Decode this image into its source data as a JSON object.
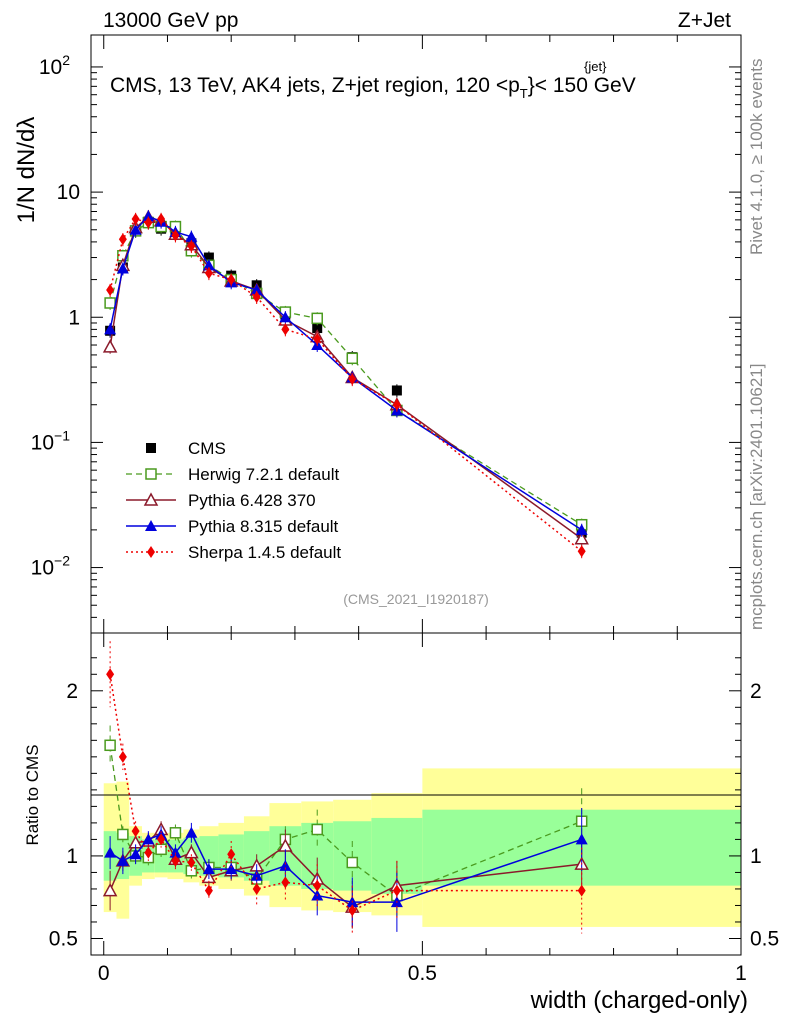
{
  "header": {
    "left": "13000 GeV pp",
    "right": "Z+Jet"
  },
  "side": {
    "rivet": "Rivet 4.1.0, ≥ 100k events",
    "mcplots": "mcplots.cern.ch [arXiv:2401.10621]"
  },
  "plot": {
    "title_main": "CMS, 13 TeV, AK4 jets, Z+jet region, 120 <p",
    "title_sup": "{jet}",
    "title_sub": "T",
    "title_end": "}< 150 GeV",
    "analysis_id": "(CMS_2021_I1920187)"
  },
  "axes": {
    "xlabel": "width (charged-only)",
    "ylabel_ratio": "Ratio to CMS",
    "ylabel_main": "1/N dN/dλ",
    "x_ticks": [
      "0",
      "0.5",
      "1"
    ],
    "y_ticks_main": [
      "10^-2",
      "10^-1",
      "1",
      "10",
      "10^2"
    ],
    "y_ticks_ratio": [
      "0.5",
      "1",
      "2"
    ]
  },
  "legend": [
    {
      "label": "CMS",
      "color": "#000000",
      "marker": "square-filled"
    },
    {
      "label": "Herwig 7.2.1 default",
      "color": "#4a9a1e",
      "marker": "square-open"
    },
    {
      "label": "Pythia 6.428 370",
      "color": "#8b1a2b",
      "marker": "triangle-open"
    },
    {
      "label": "Pythia 8.315 default",
      "color": "#0000dd",
      "marker": "triangle-filled"
    },
    {
      "label": "Sherpa 1.4.5 default",
      "color": "#ee0000",
      "marker": "diamond-filled"
    }
  ],
  "chart_data": {
    "type": "line",
    "xlim": [
      -0.02,
      1.0
    ],
    "ylim_main": [
      0.003,
      180
    ],
    "ylim_ratio": [
      0.4,
      2.35
    ],
    "bins": [
      [
        0.0,
        0.02
      ],
      [
        0.02,
        0.04
      ],
      [
        0.04,
        0.06
      ],
      [
        0.06,
        0.08
      ],
      [
        0.08,
        0.1
      ],
      [
        0.1,
        0.125
      ],
      [
        0.125,
        0.15
      ],
      [
        0.15,
        0.18
      ],
      [
        0.18,
        0.22
      ],
      [
        0.22,
        0.26
      ],
      [
        0.26,
        0.31
      ],
      [
        0.31,
        0.36
      ],
      [
        0.36,
        0.42
      ],
      [
        0.42,
        0.5
      ],
      [
        0.5,
        1.0
      ]
    ],
    "x": [
      0.01,
      0.03,
      0.05,
      0.07,
      0.09,
      0.1125,
      0.1375,
      0.165,
      0.2,
      0.24,
      0.285,
      0.335,
      0.39,
      0.46,
      0.75
    ],
    "ratio_band_green": [
      [
        0.85,
        1.15
      ],
      [
        0.86,
        1.14
      ],
      [
        0.88,
        1.12
      ],
      [
        0.9,
        1.1
      ],
      [
        0.9,
        1.1
      ],
      [
        0.9,
        1.1
      ],
      [
        0.89,
        1.11
      ],
      [
        0.88,
        1.12
      ],
      [
        0.87,
        1.13
      ],
      [
        0.85,
        1.15
      ],
      [
        0.82,
        1.18
      ],
      [
        0.8,
        1.2
      ],
      [
        0.79,
        1.21
      ],
      [
        0.77,
        1.23
      ],
      [
        0.82,
        1.28
      ]
    ],
    "ratio_band_yellow": [
      [
        0.66,
        1.44
      ],
      [
        0.62,
        1.45
      ],
      [
        0.82,
        1.18
      ],
      [
        0.86,
        1.14
      ],
      [
        0.87,
        1.13
      ],
      [
        0.86,
        1.14
      ],
      [
        0.84,
        1.16
      ],
      [
        0.82,
        1.18
      ],
      [
        0.8,
        1.2
      ],
      [
        0.76,
        1.24
      ],
      [
        0.69,
        1.32
      ],
      [
        0.67,
        1.33
      ],
      [
        0.66,
        1.34
      ],
      [
        0.64,
        1.38
      ],
      [
        0.57,
        1.53
      ]
    ],
    "series": [
      {
        "name": "CMS",
        "values": [
          0.78,
          2.5,
          4.9,
          5.8,
          5.1,
          4.7,
          3.9,
          3.0,
          2.15,
          1.8,
          1.05,
          0.82,
          0.48,
          0.26,
          0.019
        ],
        "ratio": [
          1,
          1,
          1,
          1,
          1,
          1,
          1,
          1,
          1,
          1,
          1,
          1,
          1,
          1,
          1
        ],
        "ratio_err": [
          0,
          0,
          0,
          0,
          0,
          0,
          0,
          0,
          0,
          0,
          0,
          0,
          0,
          0,
          0
        ]
      },
      {
        "name": "Herwig 7.2.1 default",
        "values": [
          1.3,
          3.1,
          4.9,
          5.7,
          5.3,
          5.3,
          3.4,
          2.6,
          2.0,
          1.55,
          1.1,
          0.98,
          0.47,
          0.18,
          0.022
        ],
        "ratio": [
          1.67,
          1.13,
          1.0,
          0.99,
          1.04,
          1.14,
          0.91,
          0.93,
          0.93,
          0.86,
          1.1,
          1.16,
          0.96,
          0.76,
          1.21
        ],
        "ratio_err": [
          0.12,
          0.05,
          0.05,
          0.05,
          0.05,
          0.05,
          0.05,
          0.05,
          0.05,
          0.06,
          0.08,
          0.12,
          0.13,
          0.15,
          0.2
        ]
      },
      {
        "name": "Pythia 6.428 370",
        "values": [
          0.58,
          2.6,
          5.2,
          6.3,
          5.9,
          4.6,
          3.8,
          2.5,
          1.95,
          1.65,
          0.95,
          0.7,
          0.33,
          0.2,
          0.017
        ],
        "ratio": [
          0.79,
          0.97,
          1.08,
          1.09,
          1.16,
          0.98,
          1.02,
          0.87,
          0.91,
          0.94,
          1.06,
          0.86,
          0.69,
          0.82,
          0.95
        ],
        "ratio_err": [
          0.12,
          0.06,
          0.05,
          0.05,
          0.05,
          0.05,
          0.05,
          0.05,
          0.06,
          0.07,
          0.1,
          0.13,
          0.13,
          0.15,
          0.18
        ]
      },
      {
        "name": "Pythia 8.315 default",
        "values": [
          0.8,
          2.45,
          5.0,
          6.4,
          5.8,
          4.8,
          4.4,
          2.6,
          1.9,
          1.65,
          1.0,
          0.6,
          0.33,
          0.18,
          0.02
        ],
        "ratio": [
          1.02,
          0.97,
          1.01,
          1.1,
          1.13,
          1.02,
          1.14,
          0.92,
          0.92,
          0.88,
          0.94,
          0.76,
          0.72,
          0.72,
          1.1
        ],
        "ratio_err": [
          0.1,
          0.08,
          0.06,
          0.05,
          0.05,
          0.05,
          0.06,
          0.06,
          0.06,
          0.07,
          0.1,
          0.12,
          0.15,
          0.18,
          0.19
        ]
      },
      {
        "name": "Sherpa 1.4.5 default",
        "values": [
          1.65,
          4.2,
          6.1,
          5.7,
          6.1,
          4.5,
          3.7,
          2.25,
          2.0,
          1.45,
          0.8,
          0.67,
          0.32,
          0.2,
          0.0135
        ],
        "ratio": [
          2.1,
          1.6,
          1.15,
          1.02,
          1.1,
          0.97,
          0.96,
          0.79,
          1.01,
          0.8,
          0.84,
          0.82,
          0.67,
          0.79,
          0.79
        ],
        "ratio_err": [
          0.2,
          0.08,
          0.06,
          0.05,
          0.05,
          0.05,
          0.05,
          0.06,
          0.08,
          0.1,
          0.12,
          0.13,
          0.15,
          0.18,
          0.26
        ]
      }
    ]
  }
}
